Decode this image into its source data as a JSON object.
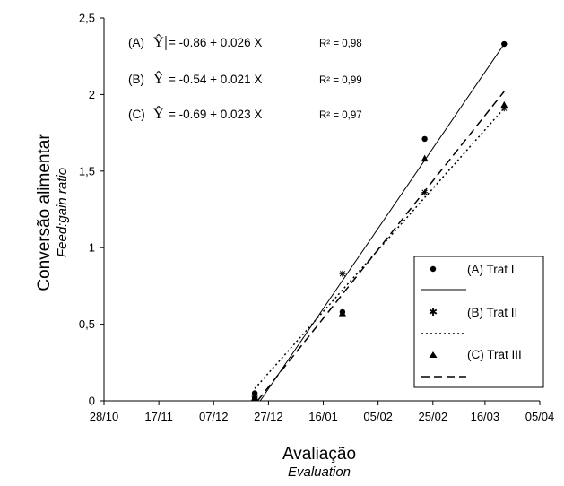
{
  "chart_data": {
    "type": "scatter",
    "title": "",
    "xlabel": "Avaliação",
    "xlabel_en": "Evaluation",
    "ylabel": "Conversão alimentar",
    "ylabel_en": "Feed:gain ratio",
    "x_ticks": [
      "28/10",
      "17/11",
      "07/12",
      "27/12",
      "16/01",
      "05/02",
      "25/02",
      "16/03",
      "05/04"
    ],
    "x_range_days": [
      0,
      159
    ],
    "y_ticks": [
      "0",
      "0,5",
      "1",
      "1,5",
      "2",
      "2,5"
    ],
    "ylim": [
      0,
      2.5
    ],
    "grid": false,
    "legend_position": "bottom-right",
    "series": [
      {
        "name": "(A) Trat I",
        "marker": "circle",
        "line": "solid",
        "points": [
          {
            "x": "22/12",
            "y": 0.05
          },
          {
            "x": "22/12",
            "y": 0.02
          },
          {
            "x": "23/01",
            "y": 0.58
          },
          {
            "x": "22/02",
            "y": 1.71
          },
          {
            "x": "23/03",
            "y": 2.33
          }
        ],
        "fit": {
          "x_start": "24/12",
          "y_start": 0.0,
          "x_end": "23/03",
          "y_end": 2.33
        }
      },
      {
        "name": "(B) Trat II",
        "marker": "star",
        "line": "dotted",
        "points": [
          {
            "x": "22/12",
            "y": 0.03
          },
          {
            "x": "23/01",
            "y": 0.83
          },
          {
            "x": "22/02",
            "y": 1.36
          },
          {
            "x": "23/03",
            "y": 1.91
          }
        ],
        "fit": {
          "x_start": "22/12",
          "y_start": 0.08,
          "x_end": "23/03",
          "y_end": 1.91
        }
      },
      {
        "name": "(C) Trat III",
        "marker": "triangle",
        "line": "dashed",
        "points": [
          {
            "x": "22/12",
            "y": 0.02
          },
          {
            "x": "23/01",
            "y": 0.57
          },
          {
            "x": "22/02",
            "y": 1.58
          },
          {
            "x": "23/03",
            "y": 1.93
          }
        ],
        "fit": {
          "x_start": "23/12",
          "y_start": 0.0,
          "x_end": "23/03",
          "y_end": 2.02
        }
      }
    ],
    "annotations": [
      {
        "label": "(A)",
        "hat": "Ŷ",
        "equation": "= -0.86 + 0.026 X",
        "r2": "R² = 0,98"
      },
      {
        "label": "(B)",
        "hat": "Ŷ",
        "equation": "= -0.54 + 0.021 X",
        "r2": "R² = 0,99"
      },
      {
        "label": "(C)",
        "hat": "Ŷ",
        "equation": "= -0.69 + 0.023 X",
        "r2": "R² = 0,97"
      }
    ]
  }
}
